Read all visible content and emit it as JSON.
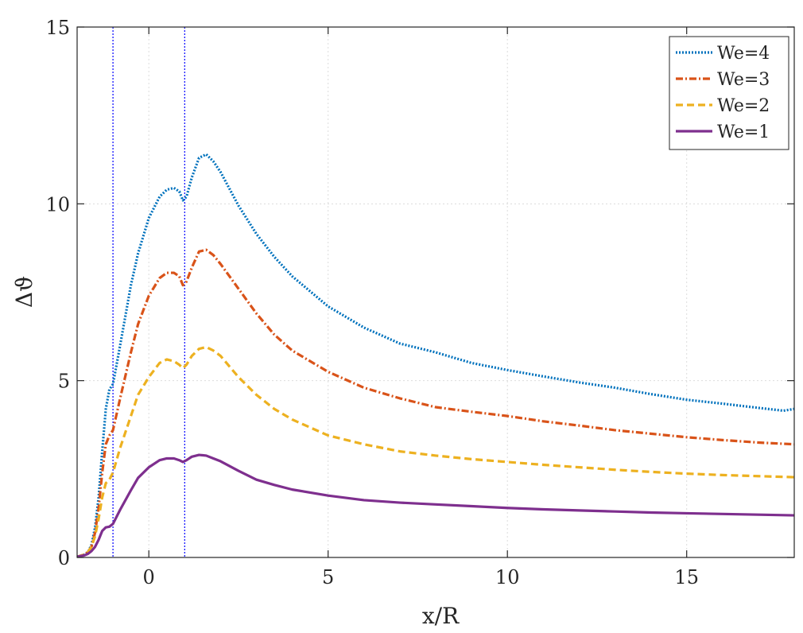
{
  "chart_data": {
    "type": "line",
    "title": "",
    "xlabel": "x/R",
    "ylabel": "Δϑ",
    "xlim": [
      -2,
      18
    ],
    "ylim": [
      0,
      15
    ],
    "xticks": [
      0,
      5,
      10,
      15
    ],
    "yticks": [
      0,
      5,
      10,
      15
    ],
    "grid": true,
    "box": true,
    "legend_position": "top-right",
    "reference_lines": [
      {
        "x": -1,
        "color": "#0000ff",
        "style": "dotted"
      },
      {
        "x": 1,
        "color": "#0000ff",
        "style": "dotted"
      }
    ],
    "series": [
      {
        "name": "We=4",
        "color": "#0072bd",
        "dash": "dotted",
        "x": [
          -2,
          -1.9,
          -1.8,
          -1.7,
          -1.6,
          -1.5,
          -1.4,
          -1.3,
          -1.2,
          -1.1,
          -1.0,
          -0.8,
          -0.5,
          -0.3,
          0,
          0.3,
          0.5,
          0.7,
          0.85,
          0.95,
          1.05,
          1.2,
          1.4,
          1.6,
          1.8,
          2,
          2.5,
          3,
          3.5,
          4,
          5,
          6,
          7,
          8,
          9,
          10,
          11,
          12,
          13,
          14,
          15,
          16,
          17,
          17.7,
          18
        ],
        "y": [
          0.02,
          0.05,
          0.08,
          0.15,
          0.35,
          0.85,
          1.7,
          3.0,
          4.2,
          4.75,
          4.9,
          6.0,
          7.7,
          8.6,
          9.6,
          10.2,
          10.4,
          10.45,
          10.35,
          10.1,
          10.2,
          10.75,
          11.3,
          11.4,
          11.2,
          10.9,
          9.95,
          9.15,
          8.5,
          7.95,
          7.1,
          6.5,
          6.05,
          5.8,
          5.5,
          5.3,
          5.12,
          4.95,
          4.8,
          4.62,
          4.46,
          4.35,
          4.23,
          4.15,
          4.2
        ]
      },
      {
        "name": "We=3",
        "color": "#d95319",
        "dash": "dashdot",
        "x": [
          -2,
          -1.9,
          -1.8,
          -1.7,
          -1.6,
          -1.5,
          -1.4,
          -1.3,
          -1.2,
          -1.1,
          -1.0,
          -0.8,
          -0.5,
          -0.3,
          0,
          0.3,
          0.5,
          0.7,
          0.85,
          0.95,
          1.05,
          1.2,
          1.4,
          1.6,
          1.8,
          2,
          2.5,
          3,
          3.5,
          4,
          5,
          6,
          7,
          8,
          9,
          10,
          11,
          12,
          13,
          14,
          15,
          16,
          17,
          18
        ],
        "y": [
          0.02,
          0.05,
          0.08,
          0.15,
          0.3,
          0.7,
          1.4,
          2.4,
          3.2,
          3.45,
          3.6,
          4.5,
          5.8,
          6.6,
          7.4,
          7.9,
          8.05,
          8.05,
          7.95,
          7.7,
          7.8,
          8.2,
          8.65,
          8.7,
          8.55,
          8.3,
          7.6,
          6.9,
          6.3,
          5.85,
          5.25,
          4.8,
          4.5,
          4.25,
          4.12,
          4.0,
          3.85,
          3.73,
          3.6,
          3.5,
          3.4,
          3.32,
          3.25,
          3.2
        ]
      },
      {
        "name": "We=2",
        "color": "#edb120",
        "dash": "dashed",
        "x": [
          -2,
          -1.9,
          -1.8,
          -1.7,
          -1.6,
          -1.5,
          -1.4,
          -1.3,
          -1.2,
          -1.1,
          -1.0,
          -0.8,
          -0.5,
          -0.3,
          0,
          0.3,
          0.5,
          0.7,
          0.85,
          0.95,
          1.05,
          1.2,
          1.4,
          1.6,
          1.8,
          2,
          2.5,
          3,
          3.5,
          4,
          5,
          6,
          7,
          8,
          9,
          10,
          11,
          12,
          13,
          14,
          15,
          16,
          17,
          18
        ],
        "y": [
          0.02,
          0.05,
          0.08,
          0.15,
          0.3,
          0.6,
          1.1,
          1.7,
          2.1,
          2.2,
          2.4,
          3.1,
          4.0,
          4.6,
          5.1,
          5.5,
          5.6,
          5.55,
          5.45,
          5.35,
          5.45,
          5.7,
          5.9,
          5.95,
          5.85,
          5.7,
          5.1,
          4.6,
          4.2,
          3.9,
          3.45,
          3.2,
          3.0,
          2.88,
          2.78,
          2.7,
          2.62,
          2.55,
          2.48,
          2.42,
          2.37,
          2.33,
          2.3,
          2.27
        ]
      },
      {
        "name": "We=1",
        "color": "#7e2f8e",
        "dash": "solid",
        "x": [
          -2,
          -1.9,
          -1.8,
          -1.7,
          -1.6,
          -1.5,
          -1.4,
          -1.3,
          -1.2,
          -1.1,
          -1.0,
          -0.8,
          -0.5,
          -0.3,
          0,
          0.3,
          0.5,
          0.7,
          0.85,
          0.95,
          1.05,
          1.2,
          1.4,
          1.6,
          1.8,
          2,
          2.5,
          3,
          3.5,
          4,
          5,
          6,
          7,
          8,
          9,
          10,
          11,
          12,
          13,
          14,
          15,
          16,
          17,
          18
        ],
        "y": [
          0.02,
          0.04,
          0.06,
          0.1,
          0.18,
          0.3,
          0.5,
          0.75,
          0.85,
          0.87,
          0.95,
          1.35,
          1.9,
          2.25,
          2.55,
          2.75,
          2.8,
          2.8,
          2.75,
          2.7,
          2.75,
          2.85,
          2.9,
          2.88,
          2.8,
          2.72,
          2.45,
          2.2,
          2.05,
          1.92,
          1.75,
          1.62,
          1.55,
          1.5,
          1.45,
          1.4,
          1.36,
          1.33,
          1.3,
          1.27,
          1.25,
          1.23,
          1.21,
          1.19
        ]
      }
    ]
  }
}
